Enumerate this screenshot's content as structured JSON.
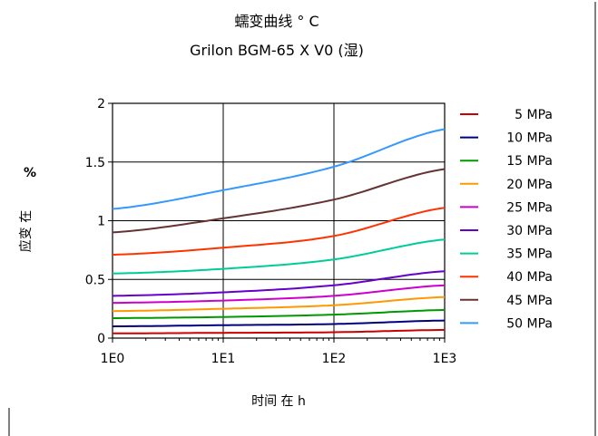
{
  "chart_data": {
    "type": "line",
    "title": "蠕变曲线 ° C",
    "subtitle": "Grilon BGM-65 X V0 (湿)",
    "xlabel": "时间 在 h",
    "ylabel_unit": "%",
    "ylabel": "应变 在",
    "x_scale": "log",
    "xlim": [
      1,
      1000
    ],
    "ylim": [
      0,
      2
    ],
    "x_ticks": [
      "1E0",
      "1E1",
      "1E2",
      "1E3"
    ],
    "y_ticks": [
      "0",
      "0.5",
      "1",
      "1.5",
      "2"
    ],
    "grid": true,
    "legend_position": "right",
    "x": [
      1,
      10,
      100,
      1000
    ],
    "series": [
      {
        "name": "5 MPa",
        "color": "#cc0000",
        "values": [
          0.04,
          0.045,
          0.05,
          0.07
        ]
      },
      {
        "name": "10 MPa",
        "color": "#000080",
        "values": [
          0.1,
          0.11,
          0.12,
          0.15
        ]
      },
      {
        "name": "15 MPa",
        "color": "#009900",
        "values": [
          0.17,
          0.18,
          0.2,
          0.24
        ]
      },
      {
        "name": "20 MPa",
        "color": "#ff9900",
        "values": [
          0.23,
          0.25,
          0.28,
          0.35
        ]
      },
      {
        "name": "25 MPa",
        "color": "#cc00cc",
        "values": [
          0.3,
          0.32,
          0.36,
          0.45
        ]
      },
      {
        "name": "30 MPa",
        "color": "#6600cc",
        "values": [
          0.36,
          0.39,
          0.45,
          0.57
        ]
      },
      {
        "name": "35 MPa",
        "color": "#00cc99",
        "values": [
          0.55,
          0.59,
          0.67,
          0.84
        ]
      },
      {
        "name": "40 MPa",
        "color": "#ff3300",
        "values": [
          0.71,
          0.77,
          0.87,
          1.11
        ]
      },
      {
        "name": "45 MPa",
        "color": "#663333",
        "values": [
          0.9,
          1.02,
          1.18,
          1.44
        ]
      },
      {
        "name": "50 MPa",
        "color": "#3399ff",
        "values": [
          1.1,
          1.26,
          1.46,
          1.78
        ]
      }
    ]
  }
}
